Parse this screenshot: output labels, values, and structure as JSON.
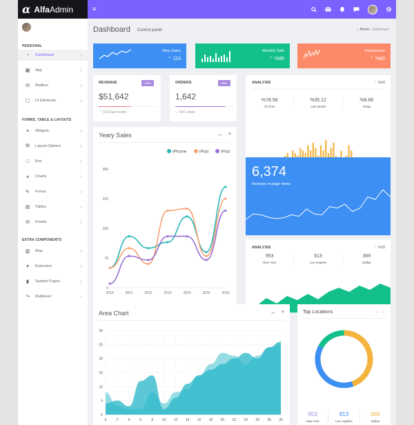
{
  "app": {
    "logo": "α",
    "name_bold": "Alfa",
    "name_rest": "Admin"
  },
  "topbar": {
    "menu_icon": "≡"
  },
  "sidebar": {
    "sections": [
      "PERSONAL",
      "FORMS, TABLE & LAYOUTS",
      "EXTRA COMPONENTS"
    ],
    "items": [
      {
        "label": "Dashboard",
        "icon": "dashboard-icon",
        "glyph": "◔"
      },
      {
        "label": "App",
        "icon": "grid-icon",
        "glyph": "▦"
      },
      {
        "label": "Mailbox",
        "icon": "mail-icon",
        "glyph": "✉"
      },
      {
        "label": "UI Elements",
        "icon": "doc-icon",
        "glyph": "▢"
      },
      {
        "label": "Widgets",
        "icon": "list-icon",
        "glyph": "≡"
      },
      {
        "label": "Layout Options",
        "icon": "copy-icon",
        "glyph": "⧉"
      },
      {
        "label": "Box",
        "icon": "square-icon",
        "glyph": "□"
      },
      {
        "label": "Charts",
        "icon": "pie-icon",
        "glyph": "◕"
      },
      {
        "label": "Forms",
        "icon": "edit-icon",
        "glyph": "✎"
      },
      {
        "label": "Tables",
        "icon": "table-icon",
        "glyph": "▤"
      },
      {
        "label": "Emails",
        "icon": "envelope-icon",
        "glyph": "✉"
      },
      {
        "label": "Map",
        "icon": "map-icon",
        "glyph": "▥"
      },
      {
        "label": "Extension",
        "icon": "plug-icon",
        "glyph": "✦"
      },
      {
        "label": "Sample Pages",
        "icon": "file-icon",
        "glyph": "▮"
      },
      {
        "label": "Multilevel",
        "icon": "share-icon",
        "glyph": "↷"
      }
    ],
    "chevron": "›"
  },
  "page": {
    "title": "Dashboard",
    "subtitle": "Control panel",
    "crumb_home": "Home",
    "crumb_current": "Dashboard"
  },
  "stats": [
    {
      "title": "New Users",
      "value": "113",
      "color": "#3d8ff3"
    },
    {
      "title": "Monthly Sale",
      "value": "%80",
      "color": "#13c08b"
    },
    {
      "title": "Impressions",
      "value": "%80",
      "color": "#fc8a68"
    }
  ],
  "revenue": {
    "title": "REVENUE",
    "btn": "View",
    "value": "$51,642",
    "note": "%18 last month",
    "progress": 0.55
  },
  "orders": {
    "title": "ORDERS",
    "btn": "View",
    "value": "1,642",
    "note": "%41 down",
    "progress": 0.85
  },
  "analysis": {
    "title": "ANALYSIS",
    "badge": "%20",
    "cols": [
      {
        "v": "%78.58",
        "l": "All Time"
      },
      {
        "v": "%35.12",
        "l": "Last Month"
      },
      {
        "v": "%8.86",
        "l": "Today"
      }
    ],
    "bars": [
      3,
      4,
      2,
      5,
      4,
      3,
      6,
      5,
      4,
      7,
      5,
      8,
      6,
      3,
      7,
      5,
      9,
      4,
      6,
      8,
      3,
      2,
      5,
      2,
      3,
      7,
      5
    ]
  },
  "yearly": {
    "title": "Yeary Sales"
  },
  "views": {
    "value": "6,374",
    "label": "Increase in page views",
    "points": [
      28,
      40,
      38,
      33,
      30,
      32,
      38,
      35,
      50,
      40,
      38,
      55,
      52,
      60,
      45,
      52,
      75,
      70,
      90,
      75
    ]
  },
  "analysis2": {
    "title": "ANALYSIS",
    "badge": "%20",
    "cols": [
      {
        "v": "953",
        "l": "New York"
      },
      {
        "v": "813",
        "l": "Los Angeles"
      },
      {
        "v": "369",
        "l": "Dallas"
      }
    ],
    "points": [
      5,
      15,
      35,
      22,
      40,
      30,
      45,
      32,
      50,
      60,
      50,
      65,
      55,
      70,
      60
    ]
  },
  "area": {
    "title": "Area Chart"
  },
  "locations": {
    "title": "Top Locations",
    "cols": [
      {
        "v": "953",
        "l": "New York",
        "color": "#a98ae0"
      },
      {
        "v": "813",
        "l": "Los Angeles",
        "color": "#3d8ff3"
      },
      {
        "v": "369",
        "l": "Dallas",
        "color": "#f3b33d"
      }
    ],
    "segments": [
      {
        "value": 953,
        "color": "#f3b33d"
      },
      {
        "value": 813,
        "color": "#3d8ff3"
      },
      {
        "value": 369,
        "color": "#13c08b"
      }
    ]
  },
  "chart_data": [
    {
      "type": "line",
      "categories": [
        "2010",
        "2011",
        "2012",
        "2013",
        "2014",
        "2015",
        "2016"
      ],
      "ylim": [
        0,
        300
      ],
      "yticks": [
        "0",
        "75",
        "150",
        "225",
        "300"
      ],
      "series": [
        {
          "name": "iPhone",
          "color": "#26b6b6",
          "values": [
            50,
            130,
            100,
            115,
            180,
            90,
            255
          ]
        },
        {
          "name": "iPod",
          "color": "#f7a172",
          "values": [
            50,
            100,
            60,
            195,
            200,
            80,
            225
          ]
        },
        {
          "name": "iPod",
          "color": "#9b6fd4",
          "values": [
            10,
            80,
            70,
            130,
            130,
            70,
            195
          ]
        }
      ]
    },
    {
      "type": "area",
      "x": [
        0,
        2,
        4,
        6,
        8,
        10,
        12,
        14,
        16,
        18,
        20,
        22,
        24,
        26,
        28,
        30
      ],
      "xticks": [
        "0",
        "2",
        "4",
        "6",
        "8",
        "10",
        "12",
        "14",
        "16",
        "18",
        "20",
        "22",
        "24",
        "26",
        "28",
        "30"
      ],
      "yticks": [
        "0",
        "5",
        "10",
        "15",
        "20",
        "25",
        "30"
      ],
      "ylim": [
        0,
        30
      ],
      "series": [
        {
          "color": "#8bd9e0",
          "values": [
            8,
            3,
            2,
            2,
            8,
            4,
            8,
            9,
            14,
            18,
            22,
            21,
            18,
            21,
            24,
            25
          ]
        },
        {
          "color": "#26b6c8",
          "values": [
            4,
            5,
            3,
            12,
            14,
            2,
            6,
            11,
            14,
            16,
            18,
            20,
            22,
            20,
            24,
            26
          ]
        }
      ]
    }
  ]
}
